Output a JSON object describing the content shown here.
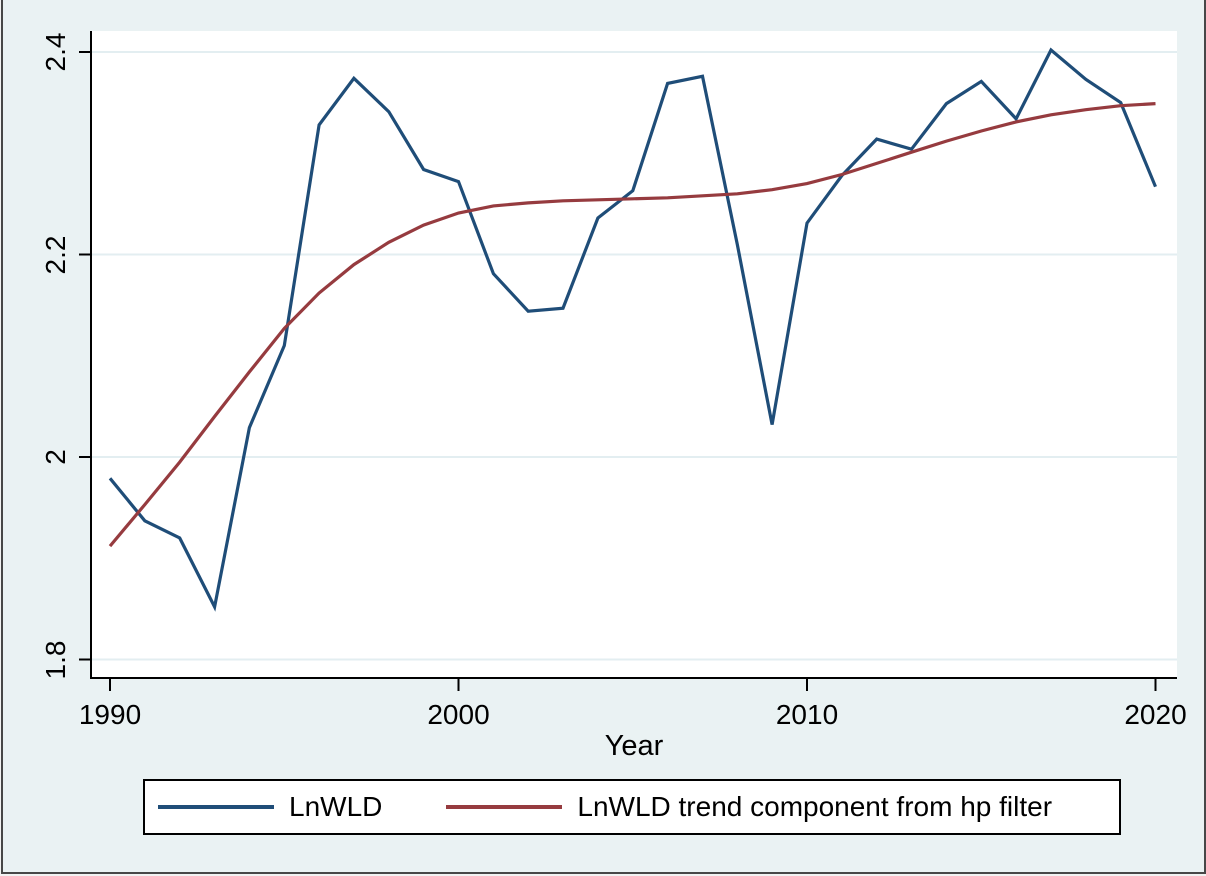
{
  "chart_data": {
    "type": "line",
    "title": "",
    "xlabel": "Year",
    "ylabel": "",
    "x": [
      1990,
      1991,
      1992,
      1993,
      1994,
      1995,
      1996,
      1997,
      1998,
      1999,
      2000,
      2001,
      2002,
      2003,
      2004,
      2005,
      2006,
      2007,
      2008,
      2009,
      2010,
      2011,
      2012,
      2013,
      2014,
      2015,
      2016,
      2017,
      2018,
      2019,
      2020
    ],
    "series": [
      {
        "name": "LnWLD",
        "color": "#1f4d78",
        "values": [
          1.979,
          1.937,
          1.92,
          1.852,
          2.029,
          2.11,
          2.328,
          2.374,
          2.341,
          2.284,
          2.272,
          2.181,
          2.144,
          2.147,
          2.236,
          2.263,
          2.369,
          2.376,
          2.21,
          2.032,
          2.231,
          2.278,
          2.314,
          2.304,
          2.349,
          2.371,
          2.334,
          2.402,
          2.373,
          2.35,
          2.267
        ]
      },
      {
        "name": "LnWLD trend component from hp filter",
        "color": "#963b3f",
        "values": [
          1.912,
          1.953,
          1.995,
          2.04,
          2.084,
          2.127,
          2.162,
          2.19,
          2.212,
          2.229,
          2.241,
          2.248,
          2.251,
          2.253,
          2.254,
          2.255,
          2.256,
          2.258,
          2.26,
          2.264,
          2.27,
          2.279,
          2.29,
          2.301,
          2.312,
          2.322,
          2.331,
          2.338,
          2.343,
          2.347,
          2.349
        ]
      }
    ],
    "x_ticks": [
      {
        "value": 1990,
        "label": "1990"
      },
      {
        "value": 2000,
        "label": "2000"
      },
      {
        "value": 2010,
        "label": "2010"
      },
      {
        "value": 2020,
        "label": "2020"
      }
    ],
    "y_ticks": [
      {
        "value": 2.4,
        "label": "2.4"
      },
      {
        "value": 2.2,
        "label": "2.2"
      },
      {
        "value": 2.0,
        "label": "2"
      },
      {
        "value": 1.8,
        "label": "1.8"
      }
    ],
    "xlim": [
      1989.45,
      2020.6
    ],
    "ylim": [
      1.789,
      2.421
    ],
    "grid": true,
    "legend_position": "bottom"
  },
  "colors": {
    "window_background": "#eaf2f3",
    "plot_background": "#ffffff",
    "gridline": "#e3eef1",
    "axis": "#000000",
    "text": "#000000",
    "legend_border": "#000000",
    "frame_border": "#474747"
  }
}
